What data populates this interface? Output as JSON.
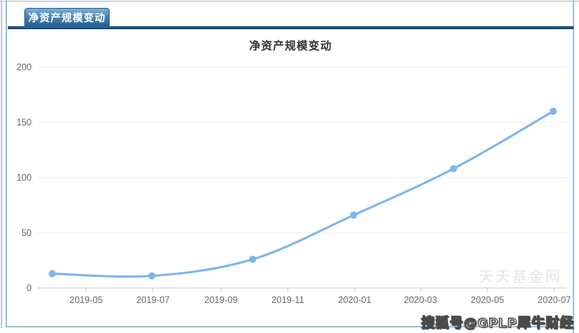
{
  "tab": {
    "label": "净资产规模变动"
  },
  "chart_data": {
    "type": "line",
    "title": "净资产规模变动",
    "series": [
      {
        "name": "净资产规模",
        "x": [
          "2019-03-31",
          "2019-06-30",
          "2019-09-30",
          "2019-12-31",
          "2020-03-31",
          "2020-06-30"
        ],
        "values": [
          13,
          11,
          26,
          66,
          108,
          160
        ],
        "color": "#7cb5ec"
      }
    ],
    "x_ticks": [
      {
        "date": "2019-05-01",
        "label": "2019-05"
      },
      {
        "date": "2019-07-01",
        "label": "2019-07"
      },
      {
        "date": "2019-09-01",
        "label": "2019-09"
      },
      {
        "date": "2019-11-01",
        "label": "2019-11"
      },
      {
        "date": "2020-01-01",
        "label": "2020-01"
      },
      {
        "date": "2020-03-01",
        "label": "2020-03"
      },
      {
        "date": "2020-05-01",
        "label": "2020-05"
      },
      {
        "date": "2020-07-01",
        "label": "2020-07"
      }
    ],
    "y_ticks": [
      0,
      50,
      100,
      150,
      200
    ],
    "xlim": [
      "2019-03-18",
      "2020-07-12"
    ],
    "ylim": [
      0,
      210
    ],
    "grid": true,
    "legend_position": "none",
    "smooth": true
  },
  "watermarks": {
    "site": "天天基金网",
    "publisher": "搜狐号@GPLP犀牛财经"
  },
  "colors": {
    "series": "#7cb5ec",
    "grid_line": "#ebebeb",
    "axis_line": "#cccccc",
    "tick_label": "#666666",
    "title_text": "#333333",
    "frame": "#a3c3da",
    "tab_bar": "#1c4e77"
  }
}
